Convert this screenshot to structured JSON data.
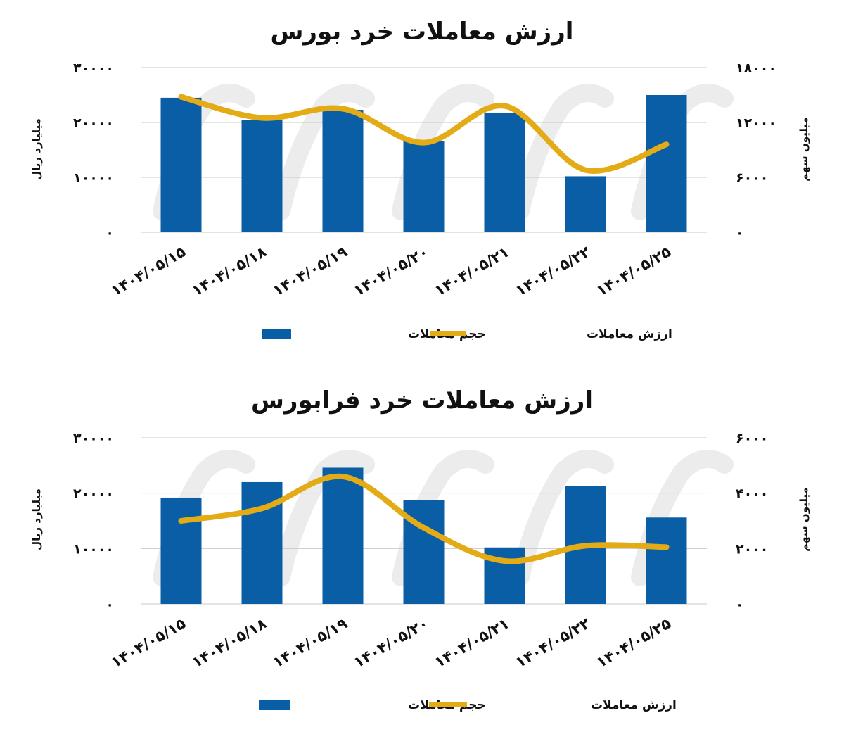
{
  "colors": {
    "bar": "#0a5ea6",
    "line": "#e3ac17",
    "grid": "#c9c9c9",
    "watermark": "#ececec"
  },
  "charts": [
    {
      "title": "ارزش معاملات خرد بورس",
      "left_axis_label": "میلیارد ریال",
      "right_axis_label": "میلیون سهم",
      "left_ticks": [
        "۰",
        "۱۰۰۰۰",
        "۲۰۰۰۰",
        "۳۰۰۰۰"
      ],
      "right_ticks": [
        "۰",
        "۶۰۰۰",
        "۱۲۰۰۰",
        "۱۸۰۰۰"
      ],
      "categories": [
        "۱۴۰۴/۰۵/۱۵",
        "۱۴۰۴/۰۵/۱۸",
        "۱۴۰۴/۰۵/۱۹",
        "۱۴۰۴/۰۵/۲۰",
        "۱۴۰۴/۰۵/۲۱",
        "۱۴۰۴/۰۵/۲۲",
        "۱۴۰۴/۰۵/۲۵"
      ],
      "legend": {
        "bar_label": "حجم معاملات",
        "line_label": "ارزش معاملات"
      }
    },
    {
      "title": "ارزش معاملات خرد فرابورس",
      "left_axis_label": "میلیارد ریال",
      "right_axis_label": "میلیون سهم",
      "left_ticks": [
        "۰",
        "۱۰۰۰۰",
        "۲۰۰۰۰",
        "۳۰۰۰۰"
      ],
      "right_ticks": [
        "۰",
        "۲۰۰۰",
        "۴۰۰۰",
        "۶۰۰۰"
      ],
      "categories": [
        "۱۴۰۴/۰۵/۱۵",
        "۱۴۰۴/۰۵/۱۸",
        "۱۴۰۴/۰۵/۱۹",
        "۱۴۰۴/۰۵/۲۰",
        "۱۴۰۴/۰۵/۲۱",
        "۱۴۰۴/۰۵/۲۲",
        "۱۴۰۴/۰۵/۲۵"
      ],
      "legend": {
        "bar_label": "حجم معاملات",
        "line_label": "ارزش معاملات"
      }
    }
  ],
  "chart_data": [
    {
      "type": "bar",
      "title": "ارزش معاملات خرد بورس",
      "categories": [
        "۱۴۰۴/۰۵/۱۵",
        "۱۴۰۴/۰۵/۱۸",
        "۱۴۰۴/۰۵/۱۹",
        "۱۴۰۴/۰۵/۲۰",
        "۱۴۰۴/۰۵/۲۱",
        "۱۴۰۴/۰۵/۲۲",
        "۱۴۰۴/۰۵/۲۵"
      ],
      "ylabel": "میلیارد ریال",
      "y2label": "میلیون سهم",
      "ylim": [
        0,
        30000
      ],
      "y2lim": [
        0,
        18000
      ],
      "series": [
        {
          "name": "حجم معاملات",
          "type": "bar",
          "axis": "left",
          "values": [
            24500,
            20500,
            22300,
            16600,
            21800,
            10200,
            25000
          ]
        },
        {
          "name": "ارزش معاملات",
          "type": "line",
          "axis": "right",
          "smooth": true,
          "values": [
            14800,
            12500,
            13500,
            9800,
            13800,
            6800,
            9600
          ]
        }
      ],
      "grid": true,
      "legend_position": "bottom"
    },
    {
      "type": "bar",
      "title": "ارزش معاملات خرد فرابورس",
      "categories": [
        "۱۴۰۴/۰۵/۱۵",
        "۱۴۰۴/۰۵/۱۸",
        "۱۴۰۴/۰۵/۱۹",
        "۱۴۰۴/۰۵/۲۰",
        "۱۴۰۴/۰۵/۲۱",
        "۱۴۰۴/۰۵/۲۲",
        "۱۴۰۴/۰۵/۲۵"
      ],
      "ylabel": "میلیارد ریال",
      "y2label": "میلیون سهم",
      "ylim": [
        0,
        30000
      ],
      "y2lim": [
        0,
        6000
      ],
      "series": [
        {
          "name": "حجم معاملات",
          "type": "bar",
          "axis": "left",
          "values": [
            19200,
            22000,
            24600,
            18700,
            10200,
            21300,
            15600
          ]
        },
        {
          "name": "ارزش معاملات",
          "type": "line",
          "axis": "right",
          "smooth": true,
          "values": [
            3000,
            3450,
            4600,
            2750,
            1550,
            2100,
            2050
          ]
        }
      ],
      "grid": true,
      "legend_position": "bottom"
    }
  ]
}
